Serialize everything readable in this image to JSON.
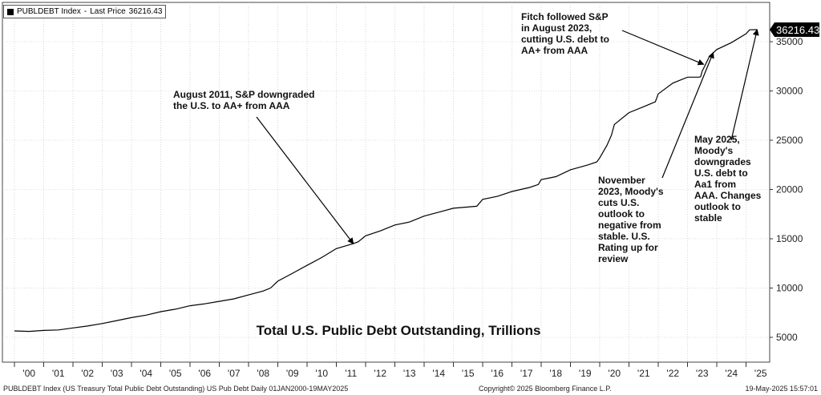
{
  "legend": {
    "ticker": "PUBLDEBT Index",
    "last_price_label": "Last Price",
    "last_price": "36216.43",
    "swatch_color": "#000000"
  },
  "footer": {
    "left": "PUBLDEBT Index (US Treasury Total Public Debt Outstanding) US Pub Debt  Daily 01JAN2000-19MAY2025",
    "center": "Copyright© 2025 Bloomberg Finance L.P.",
    "right": "19-May-2025 15:57:01"
  },
  "chart_data": {
    "type": "line",
    "title": "Total U.S. Public Debt Outstanding, Trillions",
    "xlabel": "",
    "ylabel": "",
    "xlim": [
      2000.0,
      2025.55
    ],
    "ylim": [
      3000,
      39500
    ],
    "grid": true,
    "y_axis_side": "right",
    "yticks": [
      5000,
      10000,
      15000,
      20000,
      25000,
      30000,
      35000
    ],
    "xticks": [
      "'00",
      "'01",
      "'02",
      "'03",
      "'04",
      "'05",
      "'06",
      "'07",
      "'08",
      "'09",
      "'10",
      "'11",
      "'12",
      "'13",
      "'14",
      "'15",
      "'16",
      "'17",
      "'18",
      "'19",
      "'20",
      "'21",
      "'22",
      "'23",
      "'24",
      "'25"
    ],
    "last_value_label": "36216.43",
    "series": [
      {
        "color": "#000000",
        "x": [
          2000.0,
          2000.5,
          2001.0,
          2001.5,
          2002.0,
          2002.5,
          2003.0,
          2003.5,
          2004.0,
          2004.5,
          2005.0,
          2005.5,
          2006.0,
          2006.5,
          2007.0,
          2007.5,
          2008.0,
          2008.5,
          2008.75,
          2009.0,
          2009.5,
          2010.0,
          2010.5,
          2011.0,
          2011.58,
          2011.75,
          2012.0,
          2012.5,
          2013.0,
          2013.5,
          2014.0,
          2014.5,
          2015.0,
          2015.8,
          2016.0,
          2016.5,
          2017.0,
          2017.6,
          2017.9,
          2018.0,
          2018.5,
          2019.0,
          2019.6,
          2019.9,
          2020.0,
          2020.25,
          2020.4,
          2020.5,
          2021.0,
          2021.5,
          2021.9,
          2022.0,
          2022.5,
          2023.0,
          2023.4,
          2023.45,
          2023.5,
          2023.75,
          2024.0,
          2024.5,
          2025.0,
          2025.12,
          2025.38
        ],
        "values": [
          5650,
          5600,
          5700,
          5750,
          5950,
          6150,
          6400,
          6700,
          7000,
          7250,
          7600,
          7850,
          8200,
          8400,
          8650,
          8900,
          9300,
          9700,
          10000,
          10700,
          11500,
          12300,
          13100,
          14000,
          14500,
          14700,
          15300,
          15800,
          16400,
          16700,
          17300,
          17700,
          18100,
          18300,
          19000,
          19300,
          19800,
          20200,
          20500,
          21000,
          21300,
          22000,
          22500,
          22800,
          23200,
          24500,
          25500,
          26600,
          27800,
          28400,
          28900,
          29700,
          30800,
          31400,
          31400,
          31450,
          32000,
          33500,
          34200,
          34900,
          35800,
          36200,
          36216
        ]
      }
    ],
    "annotations": [
      {
        "text": [
          "August 2011, S&P downgraded",
          "the U.S. to AA+ from AAA"
        ],
        "target": [
          2011.58,
          14500
        ]
      },
      {
        "text": [
          "Fitch followed S&P",
          "in August 2023,",
          "cutting U.S. debt to",
          "AA+ from AAA"
        ],
        "target": [
          2023.55,
          32700
        ]
      },
      {
        "text": [
          "November",
          "2023, Moody's",
          "cuts U.S.",
          "outlook to",
          "negative from",
          "stable. U.S.",
          "Rating up for",
          "review"
        ],
        "target": [
          2023.88,
          33900
        ]
      },
      {
        "text": [
          "May 2025,",
          "Moody's",
          "downgrades",
          "U.S. debt to",
          "Aa1 from",
          "AAA. Changes",
          "outlook to",
          "stable"
        ],
        "target": [
          2025.38,
          36216
        ]
      }
    ]
  }
}
